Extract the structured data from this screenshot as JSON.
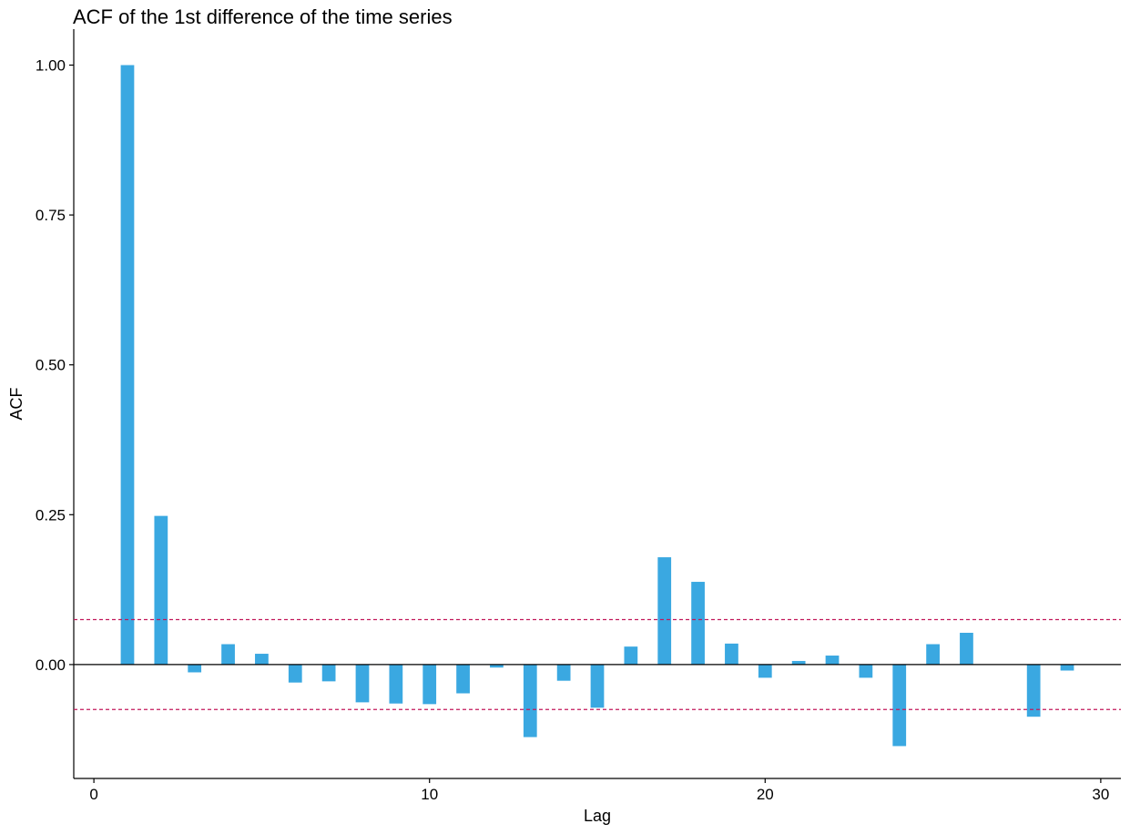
{
  "chart_data": {
    "type": "bar",
    "title": "ACF of the 1st difference of the time series",
    "xlabel": "Lag",
    "ylabel": "ACF",
    "xlim": [
      -0.6,
      30.6
    ],
    "ylim": [
      -0.19,
      1.06
    ],
    "xticks": [
      0,
      10,
      20,
      30
    ],
    "xtick_labels": [
      "0",
      "10",
      "20",
      "30"
    ],
    "yticks": [
      0,
      0.25,
      0.5,
      0.75,
      1.0
    ],
    "ytick_labels": [
      "0.00",
      "0.25",
      "0.50",
      "0.75",
      "1.00"
    ],
    "grid": false,
    "bar_color": "#3AA8E1",
    "confidence_color": "#C2185B",
    "confidence_bound": 0.075,
    "lags": [
      1,
      2,
      3,
      4,
      5,
      6,
      7,
      8,
      9,
      10,
      11,
      12,
      13,
      14,
      15,
      16,
      17,
      18,
      19,
      20,
      21,
      22,
      23,
      24,
      25,
      26,
      27,
      28,
      29
    ],
    "values": [
      1.0,
      0.248,
      -0.013,
      0.034,
      0.018,
      -0.03,
      -0.028,
      -0.063,
      -0.065,
      -0.066,
      -0.048,
      -0.005,
      -0.121,
      -0.027,
      -0.072,
      0.03,
      0.179,
      0.138,
      0.035,
      -0.022,
      0.006,
      0.015,
      -0.022,
      -0.136,
      0.034,
      0.053,
      0.0,
      -0.087,
      -0.01
    ]
  }
}
